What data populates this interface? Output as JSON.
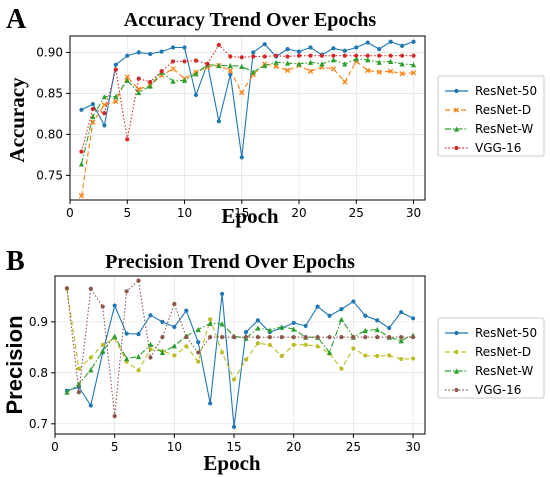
{
  "chart_data": [
    {
      "type": "line",
      "panel": "A",
      "title": "Accuracy Trend Over Epochs",
      "xlabel": "Epoch",
      "ylabel": "Accuracy",
      "xlim": [
        0,
        31
      ],
      "ylim": [
        0.72,
        0.92
      ],
      "xticks": [
        0,
        5,
        10,
        15,
        20,
        25,
        30
      ],
      "yticks": [
        0.75,
        0.8,
        0.85,
        0.9
      ],
      "grid": true,
      "legend_position": "right",
      "x": [
        1,
        2,
        3,
        4,
        5,
        6,
        7,
        8,
        9,
        10,
        11,
        12,
        13,
        14,
        15,
        16,
        17,
        18,
        19,
        20,
        21,
        22,
        23,
        24,
        25,
        26,
        27,
        28,
        29,
        30
      ],
      "series": [
        {
          "name": "ResNet-50",
          "color": "#1f77b4",
          "style": "solid",
          "marker": "circle",
          "values": [
            0.83,
            0.837,
            0.811,
            0.885,
            0.896,
            0.9,
            0.898,
            0.901,
            0.906,
            0.906,
            0.848,
            0.886,
            0.816,
            0.873,
            0.772,
            0.9,
            0.91,
            0.895,
            0.904,
            0.901,
            0.906,
            0.897,
            0.905,
            0.902,
            0.906,
            0.912,
            0.904,
            0.913,
            0.908,
            0.913
          ]
        },
        {
          "name": "ResNet-D",
          "color": "#ff7f0e",
          "style": "dashed",
          "marker": "x",
          "values": [
            0.725,
            0.815,
            0.836,
            0.84,
            0.87,
            0.855,
            0.86,
            0.872,
            0.88,
            0.868,
            0.876,
            0.882,
            0.884,
            0.878,
            0.851,
            0.873,
            0.886,
            0.883,
            0.878,
            0.884,
            0.877,
            0.882,
            0.88,
            0.864,
            0.889,
            0.878,
            0.876,
            0.877,
            0.874,
            0.875
          ]
        },
        {
          "name": "ResNet-W",
          "color": "#2ca02c",
          "style": "dashdot",
          "marker": "triangle",
          "values": [
            0.764,
            0.822,
            0.846,
            0.846,
            0.866,
            0.851,
            0.859,
            0.876,
            0.865,
            0.866,
            0.874,
            0.885,
            0.884,
            0.884,
            0.883,
            0.876,
            0.884,
            0.888,
            0.887,
            0.886,
            0.888,
            0.886,
            0.891,
            0.886,
            0.892,
            0.891,
            0.888,
            0.889,
            0.886,
            0.885
          ]
        },
        {
          "name": "VGG-16",
          "color": "#d62728",
          "style": "dotted",
          "marker": "circle",
          "values": [
            0.779,
            0.831,
            0.826,
            0.879,
            0.794,
            0.868,
            0.864,
            0.877,
            0.889,
            0.889,
            0.89,
            0.886,
            0.909,
            0.895,
            0.894,
            0.895,
            0.895,
            0.896,
            0.895,
            0.896,
            0.896,
            0.896,
            0.896,
            0.896,
            0.896,
            0.896,
            0.896,
            0.896,
            0.896,
            0.896
          ]
        }
      ]
    },
    {
      "type": "line",
      "panel": "B",
      "title": "Precision Trend Over Epochs",
      "xlabel": "Epoch",
      "ylabel": "Precision",
      "xlim": [
        0,
        31
      ],
      "ylim": [
        0.68,
        0.99
      ],
      "xticks": [
        0,
        5,
        10,
        15,
        20,
        25,
        30
      ],
      "yticks": [
        0.7,
        0.8,
        0.9
      ],
      "grid": true,
      "legend_position": "right",
      "x": [
        1,
        2,
        3,
        4,
        5,
        6,
        7,
        8,
        9,
        10,
        11,
        12,
        13,
        14,
        15,
        16,
        17,
        18,
        19,
        20,
        21,
        22,
        23,
        24,
        25,
        26,
        27,
        28,
        29,
        30
      ],
      "series": [
        {
          "name": "ResNet-50",
          "color": "#1f77b4",
          "style": "solid",
          "marker": "circle",
          "values": [
            0.765,
            0.772,
            0.736,
            0.84,
            0.932,
            0.877,
            0.876,
            0.913,
            0.9,
            0.89,
            0.922,
            0.86,
            0.74,
            0.955,
            0.694,
            0.88,
            0.903,
            0.88,
            0.888,
            0.898,
            0.892,
            0.93,
            0.912,
            0.925,
            0.94,
            0.912,
            0.903,
            0.888,
            0.919,
            0.907
          ]
        },
        {
          "name": "ResNet-D",
          "color": "#bcbd22",
          "style": "dashed",
          "marker": "circle",
          "values": [
            0.965,
            0.808,
            0.83,
            0.855,
            0.868,
            0.822,
            0.805,
            0.846,
            0.843,
            0.834,
            0.852,
            0.822,
            0.905,
            0.84,
            0.787,
            0.826,
            0.858,
            0.855,
            0.833,
            0.855,
            0.855,
            0.852,
            0.838,
            0.808,
            0.848,
            0.834,
            0.833,
            0.834,
            0.827,
            0.828
          ]
        },
        {
          "name": "ResNet-W",
          "color": "#2ca02c",
          "style": "dashdot",
          "marker": "triangle",
          "values": [
            0.762,
            0.778,
            0.806,
            0.843,
            0.872,
            0.828,
            0.832,
            0.856,
            0.84,
            0.853,
            0.872,
            0.885,
            0.897,
            0.896,
            0.872,
            0.868,
            0.888,
            0.884,
            0.89,
            0.886,
            0.87,
            0.87,
            0.84,
            0.905,
            0.87,
            0.883,
            0.885,
            0.87,
            0.863,
            0.874
          ]
        },
        {
          "name": "VGG-16",
          "color": "#8c564b",
          "style": "dotted",
          "marker": "circle",
          "values": [
            0.966,
            0.762,
            0.965,
            0.93,
            0.715,
            0.96,
            0.981,
            0.83,
            0.87,
            0.935,
            0.87,
            0.84,
            0.87,
            0.87,
            0.87,
            0.87,
            0.87,
            0.87,
            0.87,
            0.87,
            0.87,
            0.87,
            0.87,
            0.87,
            0.87,
            0.87,
            0.87,
            0.87,
            0.87,
            0.87
          ]
        }
      ]
    }
  ]
}
